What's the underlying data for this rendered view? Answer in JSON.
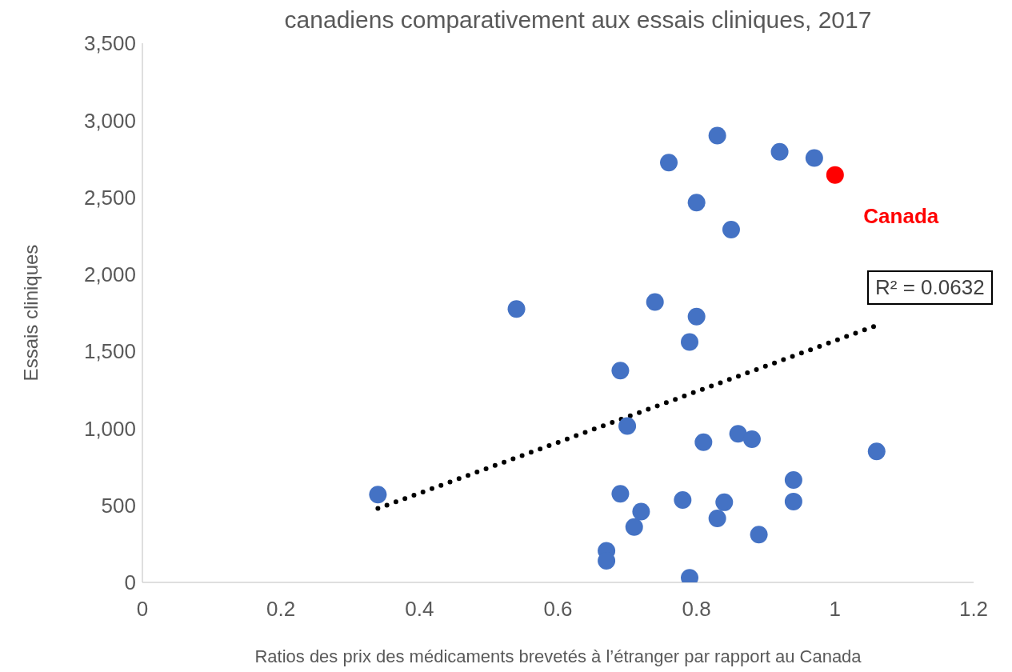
{
  "chart_data": {
    "type": "scatter",
    "title": "canadiens comparativement aux essais cliniques, 2017",
    "xlabel": "Ratios des prix des médicaments brevetés à l’étranger par rapport au Canada",
    "ylabel": "Essais cliniques",
    "xlim": [
      0,
      1.2
    ],
    "xticks": [
      0,
      0.2,
      0.4,
      0.6,
      0.8,
      {
        "value": 1,
        "label": "1"
      },
      1.2
    ],
    "ylim": [
      0,
      3500
    ],
    "yticks": [
      {
        "value": 0,
        "label": "0"
      },
      {
        "value": 500,
        "label": "500"
      },
      {
        "value": 1000,
        "label": "1,000"
      },
      {
        "value": 1500,
        "label": "1,500"
      },
      {
        "value": 2000,
        "label": "2,000"
      },
      {
        "value": 2500,
        "label": "2,500"
      },
      {
        "value": 3000,
        "label": "3,000"
      },
      {
        "value": 3500,
        "label": "3,500"
      }
    ],
    "grid": false,
    "legend": false,
    "marker": "circle",
    "annotations": [
      "R² = 0.0632"
    ],
    "series": [
      {
        "color": "#4472c4",
        "x": [
          0.34,
          0.54,
          0.67,
          0.67,
          0.69,
          0.69,
          0.7,
          0.71,
          0.72,
          0.74,
          0.76,
          0.78,
          0.79,
          0.79,
          0.8,
          0.8,
          0.81,
          0.83,
          0.83,
          0.84,
          0.85,
          0.86,
          0.88,
          0.89,
          0.92,
          0.94,
          0.94,
          0.97,
          1.06
        ],
        "values": [
          570,
          1775,
          205,
          140,
          1375,
          575,
          1015,
          360,
          460,
          1820,
          2725,
          535,
          1560,
          30,
          1725,
          2465,
          910,
          2900,
          415,
          520,
          2290,
          965,
          930,
          310,
          2795,
          665,
          525,
          2755,
          850
        ]
      },
      {
        "name": "Canada",
        "color": "#ff0000",
        "x": [
          1.0
        ],
        "values": [
          2645
        ]
      },
      {
        "type": "line",
        "color": "#000000",
        "line_style": "dotted",
        "marker": "none",
        "x": [
          0.34,
          1.06
        ],
        "values": [
          480,
          1668
        ]
      }
    ]
  }
}
